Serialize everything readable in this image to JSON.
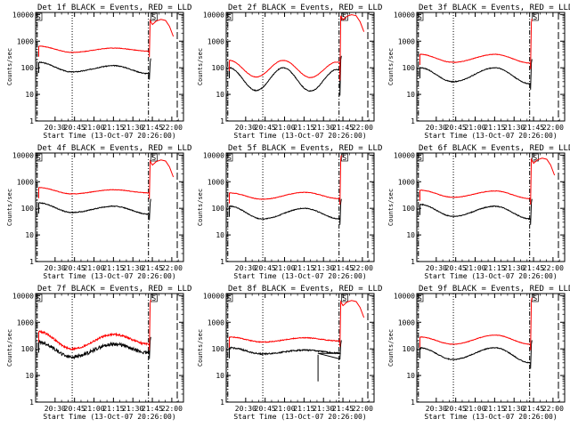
{
  "page": {
    "background": "#ffffff",
    "ink": "#000000",
    "red": "#ff0000"
  },
  "shared": {
    "ylabel": "Counts/sec",
    "xlabel": "Start Time (13-Oct-07 20:26:00)",
    "xticks": [
      "20:30",
      "20:45",
      "21:00",
      "21:15",
      "21:30",
      "21:45",
      "22:00"
    ],
    "yticks": [
      "1",
      "10",
      "100",
      "1000",
      "10000"
    ],
    "xrange_minutes": [
      20.25,
      22.15
    ],
    "ylim": [
      1,
      10000
    ],
    "yscale": "log",
    "mark_top_left": "S",
    "mark_top_right": "S"
  },
  "chart_data": [
    {
      "type": "line",
      "title": "Det 1f BLACK = Events, RED = LLD",
      "series": [
        {
          "name": "Events",
          "color": "#000000",
          "shape": "smooth",
          "level": [
            160,
            70,
            120,
            60
          ],
          "spike": 160,
          "tail": "none"
        },
        {
          "name": "LLD",
          "color": "#ff0000",
          "shape": "smooth",
          "level": [
            650,
            380,
            550,
            420
          ],
          "spike": 6000,
          "tail": "flare"
        }
      ]
    },
    {
      "type": "line",
      "title": "Det 2f BLACK = Events, RED = LLD",
      "series": [
        {
          "name": "Events",
          "color": "#000000",
          "shape": "wave",
          "level": [
            100,
            14,
            85,
            15
          ],
          "spike": 200,
          "tail": "none"
        },
        {
          "name": "LLD",
          "color": "#ff0000",
          "shape": "wave",
          "level": [
            190,
            45,
            180,
            55
          ],
          "spike": 9000,
          "tail": "flare"
        }
      ]
    },
    {
      "type": "line",
      "title": "Det 3f BLACK = Events, RED = LLD",
      "series": [
        {
          "name": "Events",
          "color": "#000000",
          "shape": "smooth",
          "level": [
            100,
            30,
            100,
            25
          ],
          "spike": 150,
          "tail": "none"
        },
        {
          "name": "LLD",
          "color": "#ff0000",
          "shape": "smooth",
          "level": [
            320,
            160,
            320,
            150
          ],
          "spike": 5000,
          "tail": "none"
        }
      ]
    },
    {
      "type": "line",
      "title": "Det 4f BLACK = Events, RED = LLD",
      "series": [
        {
          "name": "Events",
          "color": "#000000",
          "shape": "smooth",
          "level": [
            160,
            70,
            120,
            60
          ],
          "spike": 160,
          "tail": "none"
        },
        {
          "name": "LLD",
          "color": "#ff0000",
          "shape": "smooth",
          "level": [
            600,
            350,
            500,
            380
          ],
          "spike": 6000,
          "tail": "flare"
        }
      ]
    },
    {
      "type": "line",
      "title": "Det 5f BLACK = Events, RED = LLD",
      "series": [
        {
          "name": "Events",
          "color": "#000000",
          "shape": "smooth",
          "level": [
            120,
            40,
            100,
            40
          ],
          "spike": 160,
          "tail": "none"
        },
        {
          "name": "LLD",
          "color": "#ff0000",
          "shape": "smooth",
          "level": [
            380,
            220,
            400,
            230
          ],
          "spike": 7000,
          "tail": "none"
        }
      ]
    },
    {
      "type": "line",
      "title": "Det 6f BLACK = Events, RED = LLD",
      "series": [
        {
          "name": "Events",
          "color": "#000000",
          "shape": "smooth",
          "level": [
            140,
            50,
            120,
            40
          ],
          "spike": 160,
          "tail": "none"
        },
        {
          "name": "LLD",
          "color": "#ff0000",
          "shape": "smooth",
          "level": [
            480,
            260,
            450,
            230
          ],
          "spike": 7000,
          "tail": "flare"
        }
      ]
    },
    {
      "type": "line",
      "title": "Det 7f BLACK = Events, RED = LLD",
      "series": [
        {
          "name": "Events",
          "color": "#000000",
          "shape": "noisy",
          "level": [
            180,
            50,
            150,
            70
          ],
          "spike": 200,
          "tail": "none"
        },
        {
          "name": "LLD",
          "color": "#ff0000",
          "shape": "noisy",
          "level": [
            450,
            100,
            350,
            150
          ],
          "spike": 5000,
          "tail": "none"
        }
      ]
    },
    {
      "type": "line",
      "title": "Det 8f BLACK = Events, RED = LLD",
      "series": [
        {
          "name": "Events",
          "color": "#000000",
          "shape": "flat",
          "level": [
            110,
            65,
            90,
            70
          ],
          "spike": 150,
          "tail": "none",
          "dip": 6
        },
        {
          "name": "LLD",
          "color": "#ff0000",
          "shape": "flat",
          "level": [
            280,
            180,
            260,
            200
          ],
          "spike": 6000,
          "tail": "flare"
        }
      ]
    },
    {
      "type": "line",
      "title": "Det 9f BLACK = Events, RED = LLD",
      "series": [
        {
          "name": "Events",
          "color": "#000000",
          "shape": "smooth",
          "level": [
            110,
            40,
            110,
            30
          ],
          "spike": 150,
          "tail": "none"
        },
        {
          "name": "LLD",
          "color": "#ff0000",
          "shape": "smooth",
          "level": [
            280,
            150,
            330,
            150
          ],
          "spike": 6000,
          "tail": "none"
        }
      ]
    }
  ]
}
